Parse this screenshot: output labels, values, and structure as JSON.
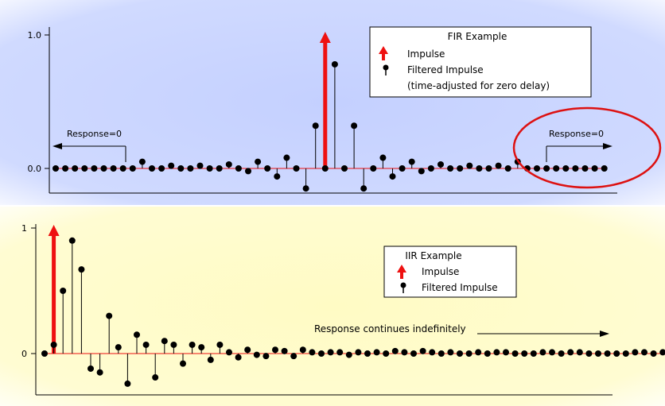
{
  "chart_data": [
    {
      "type": "stem",
      "title": "FIR Example",
      "xlabel": "",
      "ylabel": "",
      "ytick_labels": [
        "1.0",
        "0.0"
      ],
      "ylim": [
        -0.18,
        1.12
      ],
      "grid": false,
      "legend_placement": "top-right",
      "legend_title": "FIR Example",
      "legend": [
        {
          "marker": "red-arrow",
          "label": "Impulse"
        },
        {
          "marker": "black-dot",
          "label": "Filtered Impulse"
        },
        {
          "marker": "none",
          "label": "(time-adjusted for zero delay)"
        }
      ],
      "impulse": {
        "index": 41,
        "value": 1.0
      },
      "series": [
        {
          "name": "Filtered Impulse",
          "values": [
            0,
            0,
            0,
            0,
            0,
            0,
            0,
            0,
            0,
            0.05,
            0,
            0,
            0.02,
            0,
            0,
            0.02,
            0,
            0,
            0.03,
            0,
            -0.02,
            0.05,
            0,
            -0.06,
            0.08,
            0,
            -0.15,
            0.32,
            0,
            0.78,
            0,
            0.32,
            -0.15,
            0,
            0.08,
            -0.06,
            0,
            0.05,
            -0.02,
            0,
            0.03,
            0,
            0,
            0.02,
            0,
            0,
            0.02,
            0,
            0.05,
            0,
            0,
            0,
            0,
            0,
            0,
            0,
            0,
            0
          ]
        }
      ],
      "series_start_index": 13,
      "annotations": [
        {
          "text": "Response=0",
          "arrow": "left"
        },
        {
          "text": "Response=0",
          "arrow": "right",
          "highlight": "red-ellipse"
        }
      ],
      "colors": {
        "background": "#c8d4ff",
        "impulse": "#ee1111",
        "stem": "#000000",
        "highlight": "#dd1111"
      }
    },
    {
      "type": "stem",
      "title": "IIR Example",
      "xlabel": "",
      "ylabel": "",
      "ytick_labels": [
        "1",
        "0"
      ],
      "ylim": [
        -0.35,
        1.05
      ],
      "grid": false,
      "legend_placement": "top-right",
      "legend_title": "IIR Example",
      "legend": [
        {
          "marker": "red-arrow",
          "label": "Impulse"
        },
        {
          "marker": "black-dot",
          "label": "Filtered Impulse"
        }
      ],
      "impulse": {
        "index": 1,
        "value": 1.0
      },
      "series": [
        {
          "name": "Filtered Impulse",
          "values": [
            0,
            0.07,
            0.5,
            0.9,
            0.67,
            -0.12,
            -0.15,
            0.3,
            0.05,
            -0.24,
            0.15,
            0.07,
            -0.19,
            0.1,
            0.07,
            -0.08,
            0.07,
            0.05,
            -0.05,
            0.07,
            0.01,
            -0.03,
            0.03,
            -0.01,
            -0.02,
            0.03,
            0.02,
            -0.02,
            0.03,
            0.01,
            0,
            0.01,
            0.01,
            -0.01,
            0.01,
            0,
            0.01,
            0,
            0.02,
            0.01,
            0,
            0.02,
            0.01,
            0,
            0.01,
            0,
            0,
            0.01,
            0,
            0.01,
            0.01,
            0,
            0,
            0,
            0.01,
            0.01,
            0,
            0.01,
            0.01,
            0,
            0,
            0,
            0,
            0,
            0.01,
            0.01,
            0,
            0.01,
            0.01,
            0,
            0
          ]
        }
      ],
      "series_start_index": 0,
      "annotations": [
        {
          "text": "Response continues indefinitely",
          "arrow": "right"
        }
      ],
      "colors": {
        "background": "#fffbc8",
        "impulse": "#ee1111",
        "stem": "#000000"
      }
    }
  ]
}
